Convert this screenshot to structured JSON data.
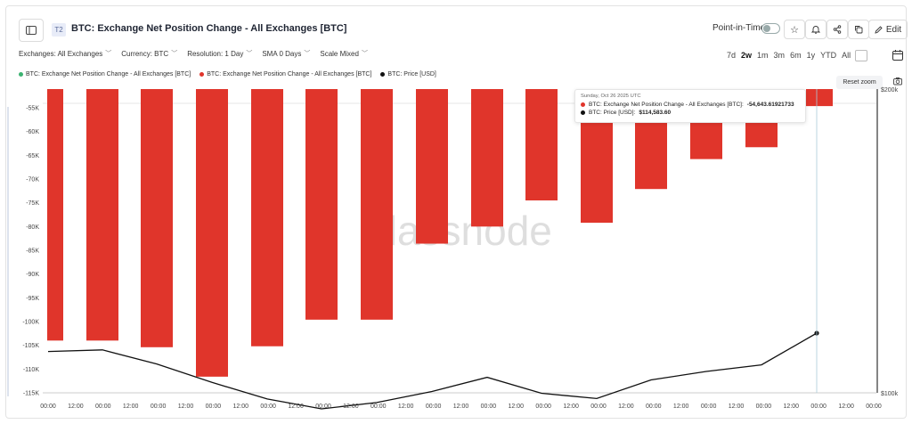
{
  "header": {
    "badge": "T2",
    "title": "BTC: Exchange Net Position Change - All Exchanges [BTC]",
    "point_in_time_label": "Point-in-Time",
    "edit_label": "Edit"
  },
  "filters": [
    {
      "label": "Exchanges: All Exchanges"
    },
    {
      "label": "Currency: BTC"
    },
    {
      "label": "Resolution: 1 Day"
    },
    {
      "label": "SMA 0 Days"
    },
    {
      "label": "Scale Mixed"
    }
  ],
  "ranges": [
    "7d",
    "2w",
    "1m",
    "3m",
    "6m",
    "1y",
    "YTD",
    "All"
  ],
  "active_range": "2w",
  "legend": [
    {
      "label": "BTC: Exchange Net Position Change - All Exchanges [BTC]",
      "color": "#3cb371"
    },
    {
      "label": "BTC: Exchange Net Position Change - All Exchanges [BTC]",
      "color": "#e0352b"
    },
    {
      "label": "BTC: Price [USD]",
      "color": "#111111"
    }
  ],
  "reset_zoom_label": "Reset zoom",
  "watermark": "glassnode",
  "tooltip": {
    "date": "Sunday, Oct 26 2025 UTC",
    "row1_label": "BTC: Exchange Net Position Change - All Exchanges [BTC]:",
    "row1_value": "-54,643.61921733",
    "row2_label": "BTC: Price [USD]:",
    "row2_value": "$114,583.60",
    "row1_color": "#e0352b",
    "row2_color": "#111111"
  },
  "chart_data": {
    "type": "bar",
    "categories": [
      "00:00",
      "00:00",
      "00:00",
      "00:00",
      "00:00",
      "00:00",
      "00:00",
      "00:00",
      "00:00",
      "00:00",
      "00:00",
      "00:00",
      "00:00",
      "00:00",
      "00:00"
    ],
    "x_tick_labels": [
      "00:00",
      "12:00",
      "00:00",
      "12:00",
      "00:00",
      "12:00",
      "00:00",
      "12:00",
      "00:00",
      "12:00",
      "00:00",
      "12:00",
      "00:00",
      "12:00",
      "00:00",
      "12:00",
      "00:00",
      "12:00",
      "00:00",
      "12:00",
      "00:00",
      "12:00",
      "00:00",
      "12:00",
      "00:00",
      "12:00",
      "00:00",
      "12:00",
      "00:00",
      "12:00",
      "00:00",
      "12:00"
    ],
    "series": [
      {
        "name": "BTC: Exchange Net Position Change - All Exchanges [BTC]",
        "color": "#e0352b",
        "values": [
          -104000,
          -104000,
          -105400,
          -111600,
          -105200,
          -99600,
          -99600,
          -83600,
          -80000,
          -74500,
          -79200,
          -72100,
          -65800,
          -63300,
          -54643.62
        ]
      },
      {
        "name": "BTC: Price [USD]",
        "color": "#111111",
        "axis": "right",
        "values": [
          109900,
          110300,
          106800,
          102400,
          98600,
          96400,
          97800,
          100300,
          103600,
          99900,
          98700,
          103000,
          105000,
          106600,
          114583.6
        ]
      }
    ],
    "y_left": {
      "ticks": [
        "-55K",
        "-60K",
        "-65K",
        "-70K",
        "-75K",
        "-80K",
        "-85K",
        "-90K",
        "-95K",
        "-100K",
        "-105K",
        "-110K",
        "-115K"
      ]
    },
    "y_right": {
      "ticks": [
        "$200k",
        "$100k"
      ],
      "scale": "log"
    },
    "hover_index": 14
  }
}
